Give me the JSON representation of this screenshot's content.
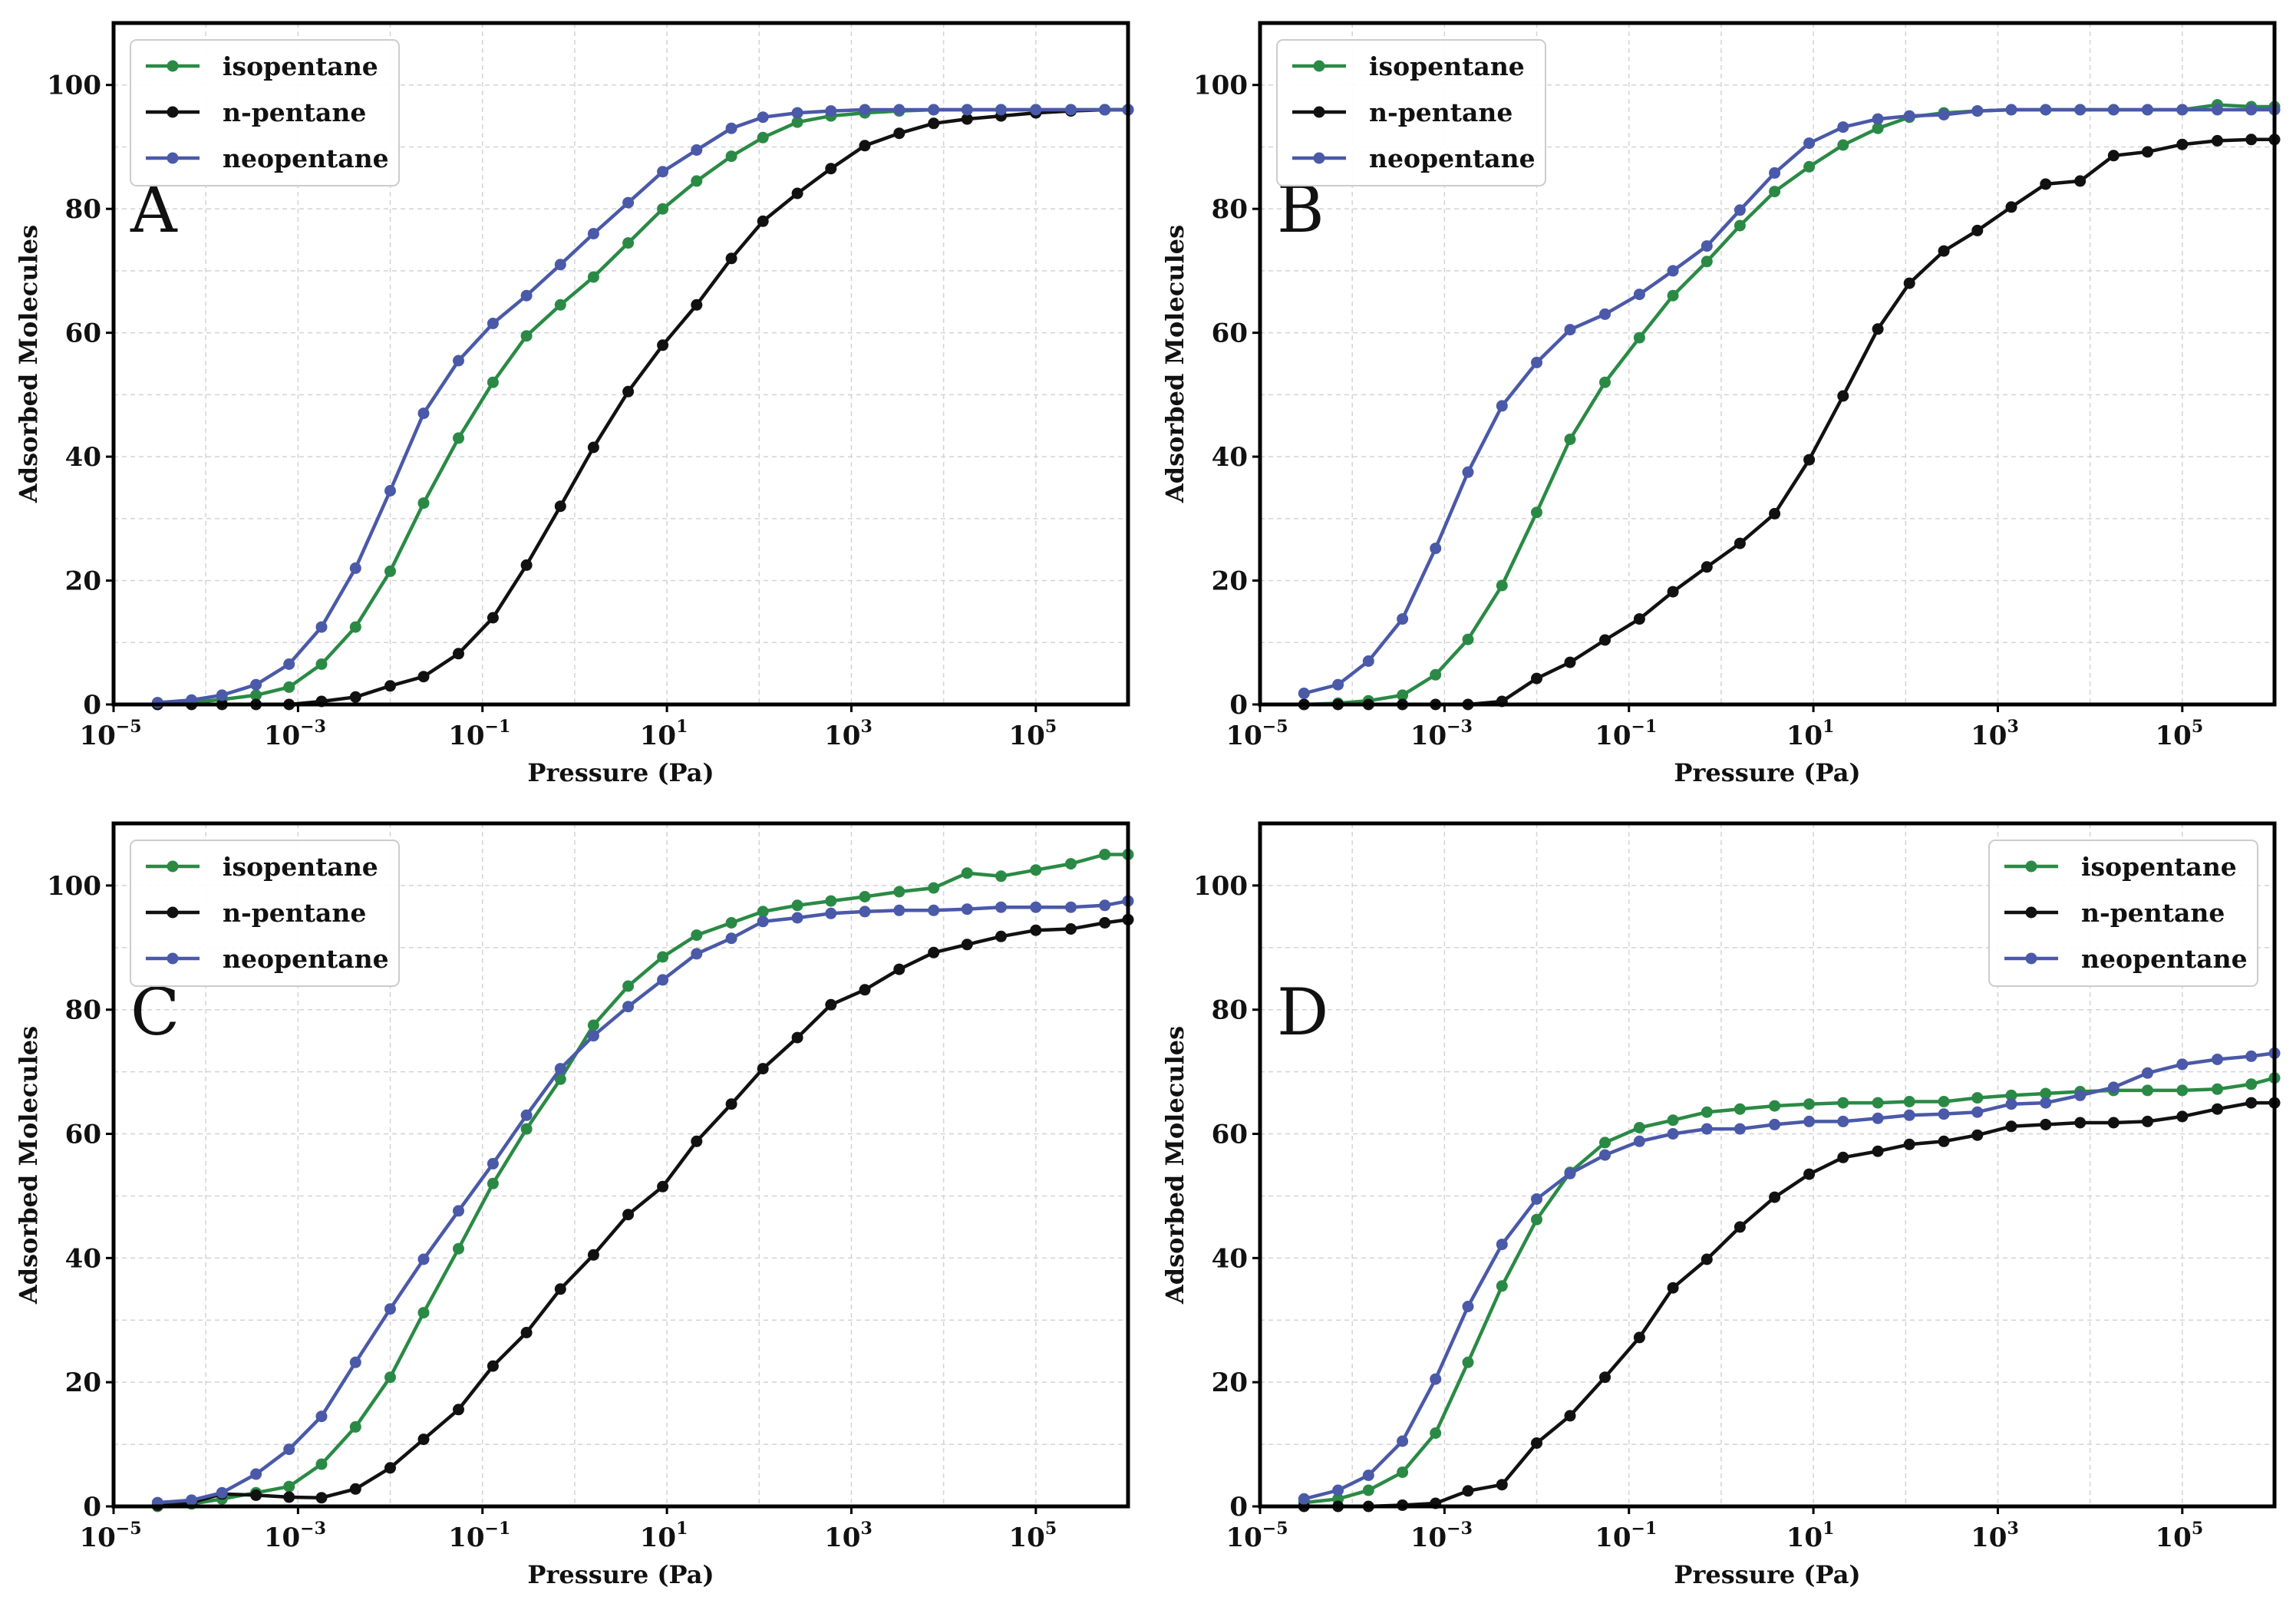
{
  "colors": {
    "isopentane": "#2a8a45",
    "n-pentane": "#111111",
    "neopentane": "#4a59a8"
  },
  "chart_data": [
    {
      "panel": "A",
      "type": "line",
      "legend_position": "top-left",
      "xlabel": "Pressure (Pa)",
      "ylabel": "Adsorbed Molecules",
      "xscale": "log",
      "xlim": [
        1e-05,
        1000000.0
      ],
      "ylim": [
        0,
        110
      ],
      "xticks": [
        {
          "base": "10",
          "exp": "−5"
        },
        {
          "base": "10",
          "exp": "−3"
        },
        {
          "base": "10",
          "exp": "−1"
        },
        {
          "base": "10",
          "exp": "1"
        },
        {
          "base": "10",
          "exp": "3"
        },
        {
          "base": "10",
          "exp": "5"
        }
      ],
      "yticks": [
        "0",
        "20",
        "40",
        "60",
        "80",
        "100"
      ],
      "grid": true,
      "series": [
        {
          "name": "isopentane",
          "color": "#2a8a45",
          "x": [
            3e-05,
            7e-05,
            0.00015,
            0.00035,
            0.0008,
            0.0018,
            0.0042,
            0.01,
            0.023,
            0.055,
            0.13,
            0.3,
            0.7,
            1.6,
            3.8,
            9,
            21,
            50,
            110,
            260,
            600,
            1400,
            3300,
            7800,
            18000,
            42000,
            100000,
            240000,
            560000,
            1000000
          ],
          "y": [
            0,
            0.3,
            0.8,
            1.5,
            2.8,
            6.5,
            12.5,
            21.5,
            32.5,
            43,
            52,
            59.5,
            64.5,
            69,
            74.5,
            80,
            84.5,
            88.5,
            91.5,
            94,
            95,
            95.5,
            95.8,
            96,
            96,
            96,
            96,
            96,
            96,
            96
          ]
        },
        {
          "name": "n-pentane",
          "color": "#111111",
          "x": [
            3e-05,
            7e-05,
            0.00015,
            0.00035,
            0.0008,
            0.0018,
            0.0042,
            0.01,
            0.023,
            0.055,
            0.13,
            0.3,
            0.7,
            1.6,
            3.8,
            9,
            21,
            50,
            110,
            260,
            600,
            1400,
            3300,
            7800,
            18000,
            42000,
            100000,
            240000,
            560000,
            1000000
          ],
          "y": [
            0,
            0,
            0,
            0,
            0,
            0.5,
            1.2,
            3,
            4.5,
            8.2,
            14,
            22.5,
            32,
            41.5,
            50.5,
            58,
            64.5,
            72,
            78,
            82.5,
            86.5,
            90.2,
            92.2,
            93.8,
            94.5,
            95,
            95.5,
            95.8,
            96,
            96
          ]
        },
        {
          "name": "neopentane",
          "color": "#4a59a8",
          "x": [
            3e-05,
            7e-05,
            0.00015,
            0.00035,
            0.0008,
            0.0018,
            0.0042,
            0.01,
            0.023,
            0.055,
            0.13,
            0.3,
            0.7,
            1.6,
            3.8,
            9,
            21,
            50,
            110,
            260,
            600,
            1400,
            3300,
            7800,
            18000,
            42000,
            100000,
            240000,
            560000,
            1000000
          ],
          "y": [
            0.3,
            0.7,
            1.5,
            3.2,
            6.5,
            12.5,
            22,
            34.5,
            47,
            55.5,
            61.5,
            66,
            71,
            76,
            81,
            86,
            89.5,
            93,
            94.8,
            95.5,
            95.8,
            96,
            96,
            96,
            96,
            96,
            96,
            96,
            96,
            96
          ]
        }
      ]
    },
    {
      "panel": "B",
      "type": "line",
      "legend_position": "top-left",
      "xlabel": "Pressure (Pa)",
      "ylabel": "Adsorbed Molecules",
      "xscale": "log",
      "xlim": [
        1e-05,
        1000000.0
      ],
      "ylim": [
        0,
        110
      ],
      "xticks": [
        {
          "base": "10",
          "exp": "−5"
        },
        {
          "base": "10",
          "exp": "−3"
        },
        {
          "base": "10",
          "exp": "−1"
        },
        {
          "base": "10",
          "exp": "1"
        },
        {
          "base": "10",
          "exp": "3"
        },
        {
          "base": "10",
          "exp": "5"
        }
      ],
      "yticks": [
        "0",
        "20",
        "40",
        "60",
        "80",
        "100"
      ],
      "grid": true,
      "series": [
        {
          "name": "isopentane",
          "color": "#2a8a45",
          "x": [
            3e-05,
            7e-05,
            0.00015,
            0.00035,
            0.0008,
            0.0018,
            0.0042,
            0.01,
            0.023,
            0.055,
            0.13,
            0.3,
            0.7,
            1.6,
            3.8,
            9,
            21,
            50,
            110,
            260,
            600,
            1400,
            3300,
            7800,
            18000,
            42000,
            100000,
            240000,
            560000,
            1000000
          ],
          "y": [
            0,
            0.2,
            0.6,
            1.5,
            4.8,
            10.5,
            19.2,
            31,
            42.8,
            52,
            59.2,
            66,
            71.5,
            77.3,
            82.8,
            86.8,
            90.3,
            93,
            94.8,
            95.5,
            95.8,
            96,
            96,
            96,
            96,
            96,
            96,
            96.8,
            96.5,
            96.5
          ]
        },
        {
          "name": "n-pentane",
          "color": "#111111",
          "x": [
            3e-05,
            7e-05,
            0.00015,
            0.00035,
            0.0008,
            0.0018,
            0.0042,
            0.01,
            0.023,
            0.055,
            0.13,
            0.3,
            0.7,
            1.6,
            3.8,
            9,
            21,
            50,
            110,
            260,
            600,
            1400,
            3300,
            7800,
            18000,
            42000,
            100000,
            240000,
            560000,
            1000000
          ],
          "y": [
            0,
            0,
            0,
            0,
            0,
            0,
            0.5,
            4.2,
            6.8,
            10.4,
            13.8,
            18.2,
            22.2,
            26,
            30.8,
            39.5,
            49.8,
            60.6,
            68,
            73.2,
            76.5,
            80.3,
            84,
            84.5,
            88.6,
            89.2,
            90.4,
            91,
            91.2,
            91.2
          ]
        },
        {
          "name": "neopentane",
          "color": "#4a59a8",
          "x": [
            3e-05,
            7e-05,
            0.00015,
            0.00035,
            0.0008,
            0.0018,
            0.0042,
            0.01,
            0.023,
            0.055,
            0.13,
            0.3,
            0.7,
            1.6,
            3.8,
            9,
            21,
            50,
            110,
            260,
            600,
            1400,
            3300,
            7800,
            18000,
            42000,
            100000,
            240000,
            560000,
            1000000
          ],
          "y": [
            1.8,
            3.2,
            7,
            13.8,
            25.2,
            37.5,
            48.2,
            55.2,
            60.5,
            63,
            66.2,
            70,
            74,
            79.8,
            85.8,
            90.6,
            93.2,
            94.5,
            95,
            95.2,
            95.8,
            96,
            96,
            96,
            96,
            96,
            96,
            96,
            96,
            96
          ]
        }
      ]
    },
    {
      "panel": "C",
      "type": "line",
      "legend_position": "top-left",
      "xlabel": "Pressure (Pa)",
      "ylabel": "Adsorbed Molecules",
      "xscale": "log",
      "xlim": [
        1e-05,
        1000000.0
      ],
      "ylim": [
        0,
        110
      ],
      "xticks": [
        {
          "base": "10",
          "exp": "−5"
        },
        {
          "base": "10",
          "exp": "−3"
        },
        {
          "base": "10",
          "exp": "−1"
        },
        {
          "base": "10",
          "exp": "1"
        },
        {
          "base": "10",
          "exp": "3"
        },
        {
          "base": "10",
          "exp": "5"
        }
      ],
      "yticks": [
        "0",
        "20",
        "40",
        "60",
        "80",
        "100"
      ],
      "grid": true,
      "series": [
        {
          "name": "isopentane",
          "color": "#2a8a45",
          "x": [
            3e-05,
            7e-05,
            0.00015,
            0.00035,
            0.0008,
            0.0018,
            0.0042,
            0.01,
            0.023,
            0.055,
            0.13,
            0.3,
            0.7,
            1.6,
            3.8,
            9,
            21,
            50,
            110,
            260,
            600,
            1400,
            3300,
            7800,
            18000,
            42000,
            100000,
            240000,
            560000,
            1000000
          ],
          "y": [
            0,
            0.4,
            1.2,
            2.2,
            3.2,
            6.8,
            12.8,
            20.8,
            31.2,
            41.5,
            52,
            60.8,
            68.8,
            77.5,
            83.8,
            88.5,
            92,
            94,
            95.8,
            96.8,
            97.5,
            98.2,
            99,
            99.6,
            102,
            101.5,
            102.5,
            103.5,
            105,
            105
          ]
        },
        {
          "name": "n-pentane",
          "color": "#111111",
          "x": [
            3e-05,
            7e-05,
            0.00015,
            0.00035,
            0.0008,
            0.0018,
            0.0042,
            0.01,
            0.023,
            0.055,
            0.13,
            0.3,
            0.7,
            1.6,
            3.8,
            9,
            21,
            50,
            110,
            260,
            600,
            1400,
            3300,
            7800,
            18000,
            42000,
            100000,
            240000,
            560000,
            1000000
          ],
          "y": [
            0.2,
            0.6,
            2,
            1.8,
            1.5,
            1.4,
            2.8,
            6.2,
            10.8,
            15.6,
            22.6,
            28,
            35,
            40.5,
            47,
            51.5,
            58.8,
            64.8,
            70.5,
            75.5,
            80.8,
            83.2,
            86.5,
            89.2,
            90.5,
            91.8,
            92.8,
            93,
            94,
            94.5
          ]
        },
        {
          "name": "neopentane",
          "color": "#4a59a8",
          "x": [
            3e-05,
            7e-05,
            0.00015,
            0.00035,
            0.0008,
            0.0018,
            0.0042,
            0.01,
            0.023,
            0.055,
            0.13,
            0.3,
            0.7,
            1.6,
            3.8,
            9,
            21,
            50,
            110,
            260,
            600,
            1400,
            3300,
            7800,
            18000,
            42000,
            100000,
            240000,
            560000,
            1000000
          ],
          "y": [
            0.6,
            1,
            2.2,
            5.2,
            9.2,
            14.5,
            23.2,
            31.8,
            39.8,
            47.6,
            55.2,
            63,
            70.5,
            75.8,
            80.5,
            84.8,
            89,
            91.5,
            94.2,
            94.8,
            95.5,
            95.8,
            96,
            96,
            96.2,
            96.5,
            96.5,
            96.5,
            96.8,
            97.5
          ]
        }
      ]
    },
    {
      "panel": "D",
      "type": "line",
      "legend_position": "top-right",
      "xlabel": "Pressure (Pa)",
      "ylabel": "Adsorbed Molecules",
      "xscale": "log",
      "xlim": [
        1e-05,
        1000000.0
      ],
      "ylim": [
        0,
        110
      ],
      "xticks": [
        {
          "base": "10",
          "exp": "−5"
        },
        {
          "base": "10",
          "exp": "−3"
        },
        {
          "base": "10",
          "exp": "−1"
        },
        {
          "base": "10",
          "exp": "1"
        },
        {
          "base": "10",
          "exp": "3"
        },
        {
          "base": "10",
          "exp": "5"
        }
      ],
      "yticks": [
        "0",
        "20",
        "40",
        "60",
        "80",
        "100"
      ],
      "grid": true,
      "series": [
        {
          "name": "isopentane",
          "color": "#2a8a45",
          "x": [
            3e-05,
            7e-05,
            0.00015,
            0.00035,
            0.0008,
            0.0018,
            0.0042,
            0.01,
            0.023,
            0.055,
            0.13,
            0.3,
            0.7,
            1.6,
            3.8,
            9,
            21,
            50,
            110,
            260,
            600,
            1400,
            3300,
            7800,
            18000,
            42000,
            100000,
            240000,
            560000,
            1000000
          ],
          "y": [
            0.6,
            1.2,
            2.6,
            5.5,
            11.8,
            23.2,
            35.5,
            46.2,
            53.8,
            58.6,
            61,
            62.2,
            63.5,
            64,
            64.5,
            64.8,
            65,
            65,
            65.2,
            65.2,
            65.8,
            66.2,
            66.5,
            66.8,
            67,
            67,
            67,
            67.2,
            68,
            69
          ]
        },
        {
          "name": "n-pentane",
          "color": "#111111",
          "x": [
            3e-05,
            7e-05,
            0.00015,
            0.00035,
            0.0008,
            0.0018,
            0.0042,
            0.01,
            0.023,
            0.055,
            0.13,
            0.3,
            0.7,
            1.6,
            3.8,
            9,
            21,
            50,
            110,
            260,
            600,
            1400,
            3300,
            7800,
            18000,
            42000,
            100000,
            240000,
            560000,
            1000000
          ],
          "y": [
            0,
            0,
            0,
            0.2,
            0.5,
            2.5,
            3.5,
            10.2,
            14.6,
            20.8,
            27.2,
            35.2,
            39.8,
            45,
            49.8,
            53.5,
            56.2,
            57.2,
            58.3,
            58.8,
            59.8,
            61.2,
            61.5,
            61.8,
            61.8,
            62,
            62.8,
            64,
            65,
            65
          ]
        },
        {
          "name": "neopentane",
          "color": "#4a59a8",
          "x": [
            3e-05,
            7e-05,
            0.00015,
            0.00035,
            0.0008,
            0.0018,
            0.0042,
            0.01,
            0.023,
            0.055,
            0.13,
            0.3,
            0.7,
            1.6,
            3.8,
            9,
            21,
            50,
            110,
            260,
            600,
            1400,
            3300,
            7800,
            18000,
            42000,
            100000,
            240000,
            560000,
            1000000
          ],
          "y": [
            1.2,
            2.6,
            5,
            10.5,
            20.5,
            32.2,
            42.2,
            49.5,
            53.6,
            56.6,
            58.8,
            60,
            60.8,
            60.8,
            61.5,
            62,
            62,
            62.5,
            63,
            63.2,
            63.5,
            64.8,
            65,
            66.2,
            67.5,
            69.8,
            71.2,
            72,
            72.5,
            73
          ]
        }
      ]
    }
  ]
}
